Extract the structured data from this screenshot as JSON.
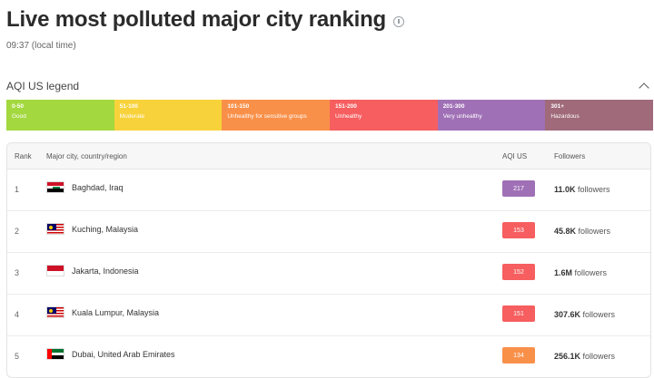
{
  "page": {
    "title": "Live most polluted major city ranking",
    "timestamp": "09:37 (local time)"
  },
  "legend": {
    "title": "AQI US legend",
    "segments": [
      {
        "range": "0-50",
        "label": "Good",
        "color": "#a3d83f"
      },
      {
        "range": "51-100",
        "label": "Moderate",
        "color": "#f7d23a"
      },
      {
        "range": "101-150",
        "label": "Unhealthy for sensitive groups",
        "color": "#f99049"
      },
      {
        "range": "151-200",
        "label": "Unhealthy",
        "color": "#f65e5f"
      },
      {
        "range": "201-300",
        "label": "Very unhealthy",
        "color": "#a070b6"
      },
      {
        "range": "301+",
        "label": "Hazardous",
        "color": "#a06a7b"
      }
    ]
  },
  "table": {
    "headers": {
      "rank": "Rank",
      "city": "Major city, country/region",
      "aqi": "AQI US",
      "followers": "Followers"
    },
    "rows": [
      {
        "rank": "1",
        "city": "Baghdad, Iraq",
        "flag": "iraq-flag-icon",
        "aqi": "217",
        "aqi_color": "#a070b6",
        "followers_count": "11.0K",
        "followers_suffix": " followers"
      },
      {
        "rank": "2",
        "city": "Kuching, Malaysia",
        "flag": "malaysia-flag-icon",
        "aqi": "153",
        "aqi_color": "#f65e5f",
        "followers_count": "45.8K",
        "followers_suffix": " followers"
      },
      {
        "rank": "3",
        "city": "Jakarta, Indonesia",
        "flag": "indonesia-flag-icon",
        "aqi": "152",
        "aqi_color": "#f65e5f",
        "followers_count": "1.6M",
        "followers_suffix": " followers"
      },
      {
        "rank": "4",
        "city": "Kuala Lumpur, Malaysia",
        "flag": "malaysia-flag-icon",
        "aqi": "151",
        "aqi_color": "#f65e5f",
        "followers_count": "307.6K",
        "followers_suffix": " followers"
      },
      {
        "rank": "5",
        "city": "Dubai, United Arab Emirates",
        "flag": "uae-flag-icon",
        "aqi": "134",
        "aqi_color": "#f99049",
        "followers_count": "256.1K",
        "followers_suffix": " followers"
      }
    ]
  },
  "icons": {
    "info": "info-icon",
    "collapse": "chevron-up-icon"
  }
}
